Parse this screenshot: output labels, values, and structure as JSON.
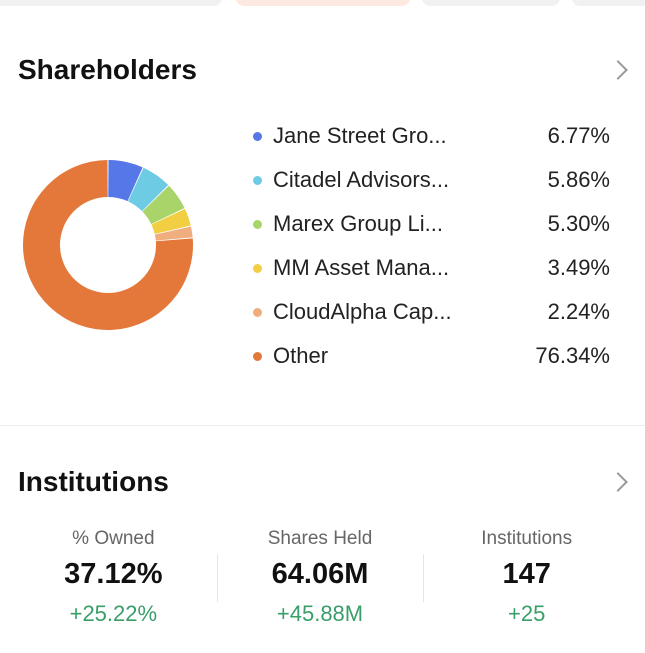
{
  "colors": {
    "top_tab_neutral": "#f1f1f1",
    "top_tab_active": "#fde9df",
    "positive": "#3a9e6a"
  },
  "shareholders": {
    "title": "Shareholders",
    "chevron_icon": "chevron-right-icon",
    "chart_data": {
      "type": "pie",
      "donut": true,
      "categories": [
        "Jane Street Gro...",
        "Citadel Advisors...",
        "Marex Group Li...",
        "MM Asset Mana...",
        "CloudAlpha Cap...",
        "Other"
      ],
      "values": [
        6.77,
        5.86,
        5.3,
        3.49,
        2.24,
        76.34
      ],
      "labels": [
        "6.77%",
        "5.86%",
        "5.30%",
        "3.49%",
        "2.24%",
        "76.34%"
      ],
      "colors": [
        "#5577e8",
        "#6ecbe4",
        "#a8d46a",
        "#f2cf42",
        "#f0ae7e",
        "#e3783a"
      ],
      "legend_position": "right"
    }
  },
  "institutions": {
    "title": "Institutions",
    "chevron_icon": "chevron-right-icon",
    "stats": [
      {
        "label": "% Owned",
        "value": "37.12%",
        "change": "+25.22%"
      },
      {
        "label": "Shares Held",
        "value": "64.06M",
        "change": "+45.88M"
      },
      {
        "label": "Institutions",
        "value": "147",
        "change": "+25"
      }
    ]
  }
}
